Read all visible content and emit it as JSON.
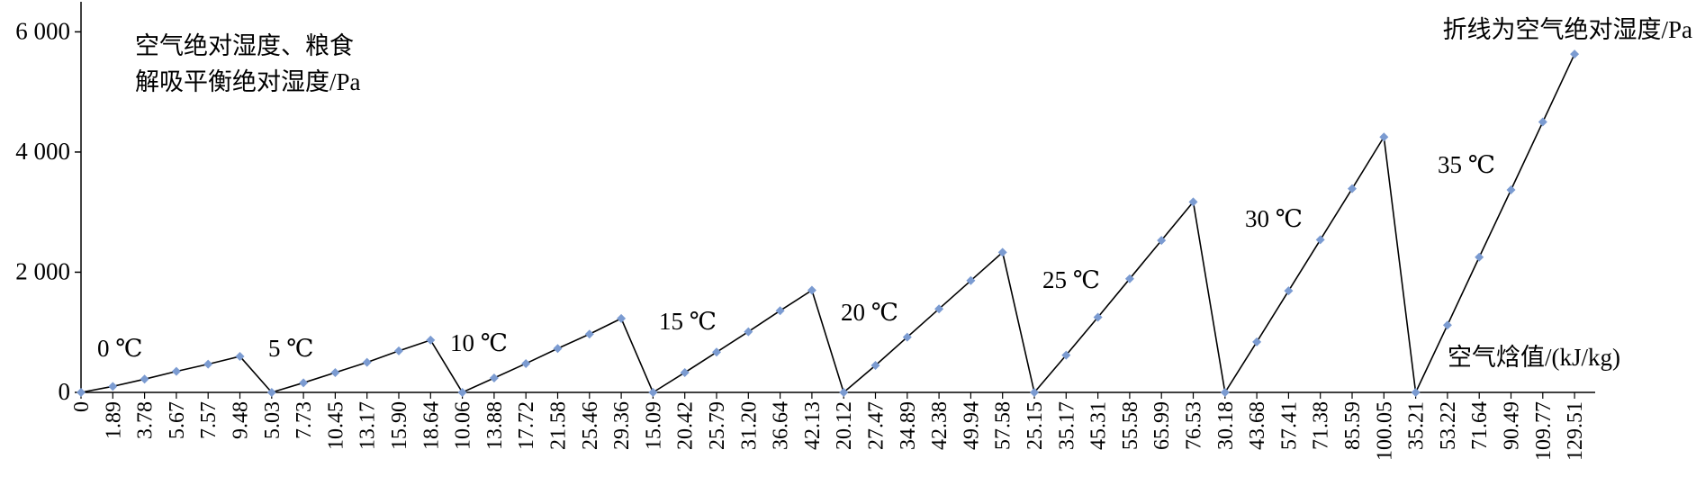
{
  "chart_data": {
    "type": "line",
    "y_label": [
      "空气绝对湿度、粮食",
      "解吸平衡绝对湿度/Pa"
    ],
    "x_label": "空气焓值/(kJ/kg)",
    "annotation": "折线为空气绝对湿度/Pa",
    "group_labels": [
      "0 ℃",
      "5 ℃",
      "10 ℃",
      "15 ℃",
      "20 ℃",
      "25 ℃",
      "30 ℃",
      "35 ℃"
    ],
    "categories": [
      "0",
      "1.89",
      "3.78",
      "5.67",
      "7.57",
      "9.48",
      "5.03",
      "7.73",
      "10.45",
      "13.17",
      "15.90",
      "18.64",
      "10.06",
      "13.88",
      "17.72",
      "21.58",
      "25.46",
      "29.36",
      "15.09",
      "20.42",
      "25.79",
      "31.20",
      "36.64",
      "42.13",
      "20.12",
      "27.47",
      "34.89",
      "42.38",
      "49.94",
      "57.58",
      "25.15",
      "35.17",
      "45.31",
      "55.58",
      "65.99",
      "76.53",
      "30.18",
      "43.68",
      "57.41",
      "71.38",
      "85.59",
      "100.05",
      "35.21",
      "53.22",
      "71.64",
      "90.49",
      "109.77",
      "129.51"
    ],
    "series": [
      {
        "color": "#7b9bd1",
        "line_color": "#000000",
        "values": [
          0,
          100,
          220,
          350,
          470,
          600,
          0,
          160,
          330,
          500,
          690,
          870,
          0,
          240,
          480,
          730,
          970,
          1230,
          0,
          330,
          670,
          1010,
          1360,
          1700,
          0,
          450,
          920,
          1390,
          1860,
          2330,
          0,
          620,
          1250,
          1890,
          2530,
          3170,
          0,
          840,
          1690,
          2540,
          3390,
          4250,
          0,
          1120,
          2250,
          3370,
          4500,
          5630
        ]
      }
    ],
    "ylim": [
      0,
      6500
    ],
    "yticks": [
      0,
      {
        "value": 2000,
        "label": "2 000"
      },
      {
        "value": 4000,
        "label": "4 000"
      },
      {
        "value": 6000,
        "label": "6 000"
      }
    ]
  }
}
